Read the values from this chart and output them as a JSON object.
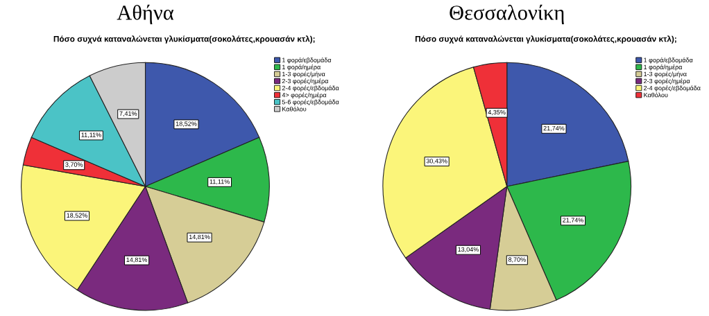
{
  "chart_data": [
    {
      "type": "pie",
      "title": "Αθήνα",
      "subtitle": "Πόσο συχνά καταναλώνεται γλυκίσματα(σοκολάτες,κρουασάν κτλ);",
      "legend": "right",
      "categories": [
        "1 φορά/εβδομάδα",
        "1 φορά/ημέρα",
        "1-3 φορές/μήνα",
        "2-3 φορές/ημέρα",
        "2-4 φορές/εβδομάδα",
        "4> φορές/ημέρα",
        "5-6 φορές/εβδομάδα",
        "Καθόλου"
      ],
      "values": [
        18.52,
        11.11,
        14.81,
        14.81,
        18.52,
        3.7,
        11.11,
        7.41
      ],
      "value_labels": [
        "18,52%",
        "11,11%",
        "14,81%",
        "14,81%",
        "18,52%",
        "3,70%",
        "11,11%",
        "7,41%"
      ],
      "colors": [
        "#3e58ac",
        "#2db84b",
        "#d6cd96",
        "#7a2a7e",
        "#fbf57a",
        "#ef3038",
        "#4bc3c6",
        "#cccccc"
      ]
    },
    {
      "type": "pie",
      "title": "Θεσσαλονίκη",
      "subtitle": "Πόσο συχνά καταναλώνεται γλυκίσματα(σοκολάτες,κρουασάν κτλ);",
      "legend": "right",
      "categories": [
        "1 φορά/εβδομάδα",
        "1 φορά/ημέρα",
        "1-3 φορές/μήνα",
        "2-3 φορές/ημέρα",
        "2-4 φορές/εβδομάδα",
        "Καθόλου"
      ],
      "values": [
        21.74,
        21.74,
        8.7,
        13.04,
        30.43,
        4.35
      ],
      "value_labels": [
        "21,74%",
        "21,74%",
        "8,70%",
        "13,04%",
        "30,43%",
        "4,35%"
      ],
      "colors": [
        "#3e58ac",
        "#2db84b",
        "#d6cd96",
        "#7a2a7e",
        "#fbf57a",
        "#ef3038"
      ]
    }
  ]
}
